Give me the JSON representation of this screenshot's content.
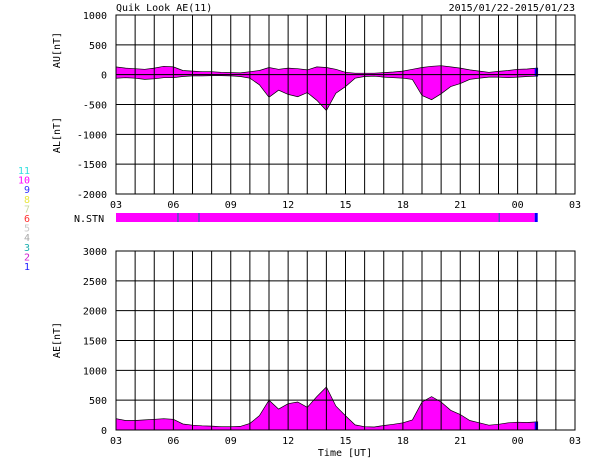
{
  "header": {
    "title": "Quik Look AE(11)",
    "date_range": "2015/01/22-2015/01/23"
  },
  "nstn_legend": {
    "items": [
      {
        "label": "11",
        "color": "#33e0e0"
      },
      {
        "label": "10",
        "color": "#ff00ff"
      },
      {
        "label": "9",
        "color": "#3333ff"
      },
      {
        "label": "8",
        "color": "#e8e840"
      },
      {
        "label": "7",
        "color": "#c8d8a0"
      },
      {
        "label": "6",
        "color": "#ff3030"
      },
      {
        "label": "5",
        "color": "#c8c8c8"
      },
      {
        "label": "4",
        "color": "#a8a8a8"
      },
      {
        "label": "3",
        "color": "#20b0b0"
      },
      {
        "label": "2",
        "color": "#d020d0"
      },
      {
        "label": "1",
        "color": "#2020ff"
      }
    ]
  },
  "nstn_bar": {
    "label": "N.STN",
    "fill_color": "#ff00ff",
    "end_color": "#0000ff",
    "marker_color": "#5050c0",
    "marker_hours": [
      6.2,
      7.3,
      23.0
    ],
    "end_hour": 25.05
  },
  "chart_data": [
    {
      "type": "area",
      "id": "au_al",
      "ylabel_top": "AU[nT]",
      "ylabel_bottom": "AL[nT]",
      "ylim": [
        -2000,
        1000
      ],
      "yticks": [
        1000,
        500,
        0,
        -500,
        -1000,
        -1500,
        -2000
      ],
      "xlim": [
        3,
        27
      ],
      "xticks": [
        "03",
        "06",
        "09",
        "12",
        "15",
        "18",
        "21",
        "00",
        "03"
      ],
      "grid": true,
      "fill_color": "#ff00ff",
      "end_color": "#0000ff",
      "data_end_hour": 25.05,
      "series": [
        {
          "name": "AU",
          "x": [
            3,
            3.5,
            4,
            4.5,
            5,
            5.5,
            6,
            6.5,
            7,
            7.5,
            8,
            8.5,
            9,
            9.5,
            10,
            10.5,
            11,
            11.5,
            12,
            12.5,
            13,
            13.5,
            14,
            14.5,
            15,
            15.5,
            16,
            16.5,
            17,
            17.5,
            18,
            18.5,
            19,
            19.5,
            20,
            20.5,
            21,
            21.5,
            22,
            22.5,
            23,
            23.5,
            24,
            24.5,
            25,
            25.05
          ],
          "values": [
            130,
            110,
            100,
            90,
            110,
            140,
            130,
            70,
            60,
            50,
            50,
            40,
            35,
            30,
            50,
            70,
            120,
            90,
            110,
            100,
            80,
            130,
            120,
            90,
            40,
            25,
            25,
            25,
            35,
            45,
            60,
            90,
            120,
            140,
            150,
            130,
            110,
            80,
            60,
            40,
            55,
            70,
            90,
            95,
            110,
            110
          ]
        },
        {
          "name": "AL",
          "x": [
            3,
            3.5,
            4,
            4.5,
            5,
            5.5,
            6,
            6.5,
            7,
            7.5,
            8,
            8.5,
            9,
            9.5,
            10,
            10.5,
            11,
            11.5,
            12,
            12.5,
            13,
            13.5,
            14,
            14.5,
            15,
            15.5,
            16,
            16.5,
            17,
            17.5,
            18,
            18.5,
            19,
            19.5,
            20,
            20.5,
            21,
            21.5,
            22,
            22.5,
            23,
            23.5,
            24,
            24.5,
            25,
            25.05
          ],
          "values": [
            -60,
            -50,
            -60,
            -80,
            -70,
            -50,
            -50,
            -30,
            -20,
            -20,
            -15,
            -15,
            -20,
            -30,
            -60,
            -170,
            -380,
            -260,
            -330,
            -370,
            -300,
            -430,
            -600,
            -310,
            -200,
            -60,
            -30,
            -25,
            -40,
            -50,
            -60,
            -80,
            -350,
            -420,
            -320,
            -200,
            -150,
            -80,
            -60,
            -40,
            -40,
            -50,
            -40,
            -30,
            -25,
            -25
          ]
        }
      ]
    },
    {
      "type": "area",
      "id": "ae",
      "ylabel": "AE[nT]",
      "xlabel": "Time [UT]",
      "ylim": [
        0,
        3000
      ],
      "yticks": [
        3000,
        2500,
        2000,
        1500,
        1000,
        500,
        0
      ],
      "xlim": [
        3,
        27
      ],
      "xticks": [
        "03",
        "06",
        "09",
        "12",
        "15",
        "18",
        "21",
        "00",
        "03"
      ],
      "grid": true,
      "fill_color": "#ff00ff",
      "end_color": "#0000ff",
      "data_end_hour": 25.05,
      "series": [
        {
          "name": "AE",
          "x": [
            3,
            3.5,
            4,
            4.5,
            5,
            5.5,
            6,
            6.5,
            7,
            7.5,
            8,
            8.5,
            9,
            9.5,
            10,
            10.5,
            11,
            11.5,
            12,
            12.5,
            13,
            13.5,
            14,
            14.5,
            15,
            15.5,
            16,
            16.5,
            17,
            17.5,
            18,
            18.5,
            19,
            19.5,
            20,
            20.5,
            21,
            21.5,
            22,
            22.5,
            23,
            23.5,
            24,
            24.5,
            25,
            25.05
          ],
          "values": [
            190,
            160,
            160,
            170,
            180,
            190,
            180,
            100,
            80,
            70,
            65,
            55,
            55,
            60,
            110,
            240,
            500,
            350,
            440,
            470,
            380,
            560,
            720,
            400,
            240,
            85,
            55,
            50,
            75,
            95,
            120,
            170,
            470,
            560,
            470,
            330,
            260,
            160,
            120,
            80,
            95,
            120,
            130,
            125,
            135,
            135
          ]
        }
      ]
    }
  ]
}
